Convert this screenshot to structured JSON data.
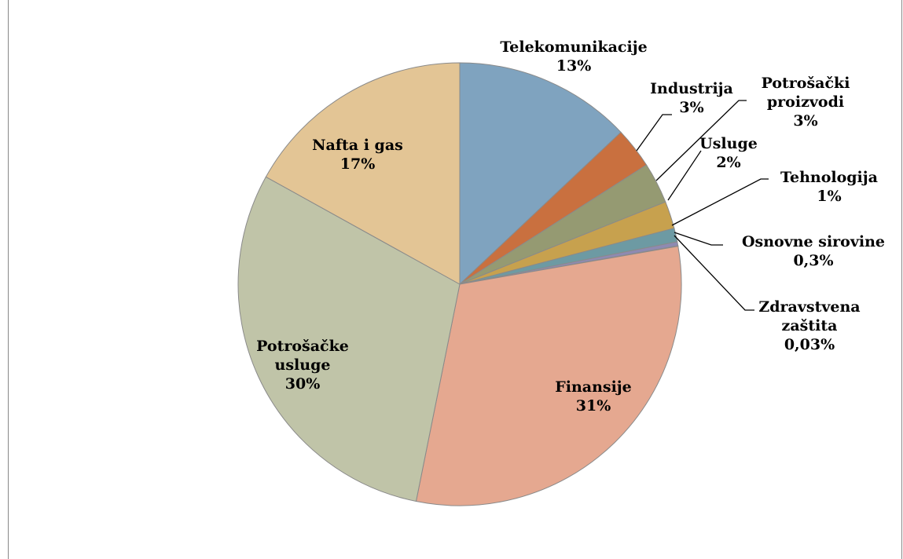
{
  "chart_data": {
    "type": "pie",
    "categories": [
      "Telekomunikacije",
      "Industrija",
      "Potrošački proizvodi",
      "Usluge",
      "Tehnologija",
      "Osnovne sirovine",
      "Zdravstvena zaštita",
      "Finansije",
      "Potrošačke usluge",
      "Nafta i gas"
    ],
    "values": [
      13,
      3,
      3,
      2,
      1,
      0.3,
      0.03,
      31,
      30,
      17
    ],
    "value_labels": [
      "13%",
      "3%",
      "3%",
      "2%",
      "1%",
      "0,3%",
      "0,03%",
      "31%",
      "30%",
      "17%"
    ],
    "colors": [
      "#7fa3bf",
      "#c9703f",
      "#959a72",
      "#c7a14e",
      "#6d9aa3",
      "#8e8ab2",
      "#c88a80",
      "#e5a890",
      "#c0c4a8",
      "#e3c595"
    ]
  }
}
